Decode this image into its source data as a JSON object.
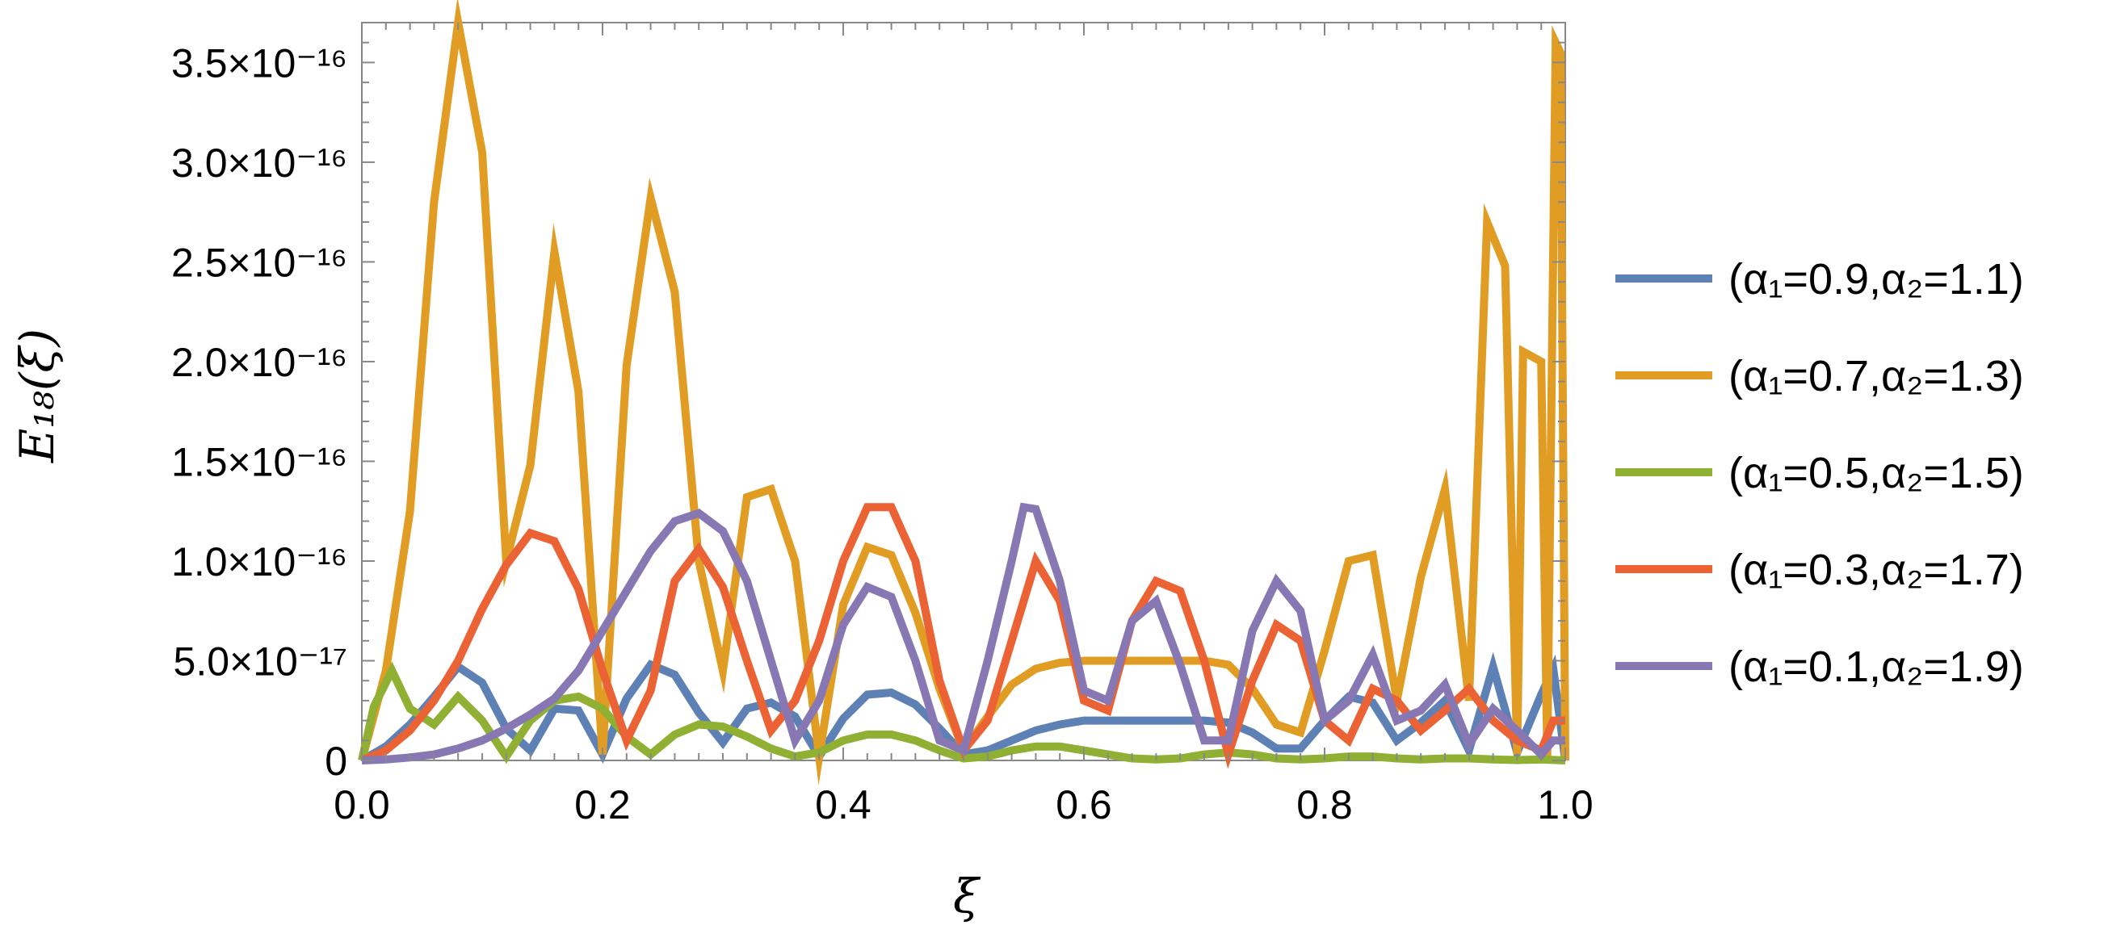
{
  "chart_data": {
    "type": "line",
    "xlabel": "ξ",
    "ylabel": "E₁₈(ξ)",
    "xlim": [
      0,
      1
    ],
    "ylim": [
      0,
      3.7e-16
    ],
    "x_ticks": [
      0,
      0.2,
      0.4,
      0.6,
      0.8,
      1.0
    ],
    "x_tick_labels": [
      "0.0",
      "0.2",
      "0.4",
      "0.6",
      "0.8",
      "1.0"
    ],
    "y_ticks": [
      0,
      5e-17,
      1e-16,
      1.5e-16,
      2e-16,
      2.5e-16,
      3e-16,
      3.5e-16
    ],
    "y_tick_labels": [
      "0",
      "5.0×10⁻¹⁷",
      "1.0×10⁻¹⁶",
      "1.5×10⁻¹⁶",
      "2.0×10⁻¹⁶",
      "2.5×10⁻¹⁶",
      "3.0×10⁻¹⁶",
      "3.5×10⁻¹⁶"
    ],
    "grid": false,
    "legend_position": "right",
    "series": [
      {
        "name": "(α₁=0.9,α₂=1.1)",
        "color": "#5E81B5",
        "points": [
          [
            0,
            0
          ],
          [
            0.02,
            7e-18
          ],
          [
            0.04,
            1.8e-17
          ],
          [
            0.06,
            3.2e-17
          ],
          [
            0.08,
            4.7e-17
          ],
          [
            0.1,
            3.9e-17
          ],
          [
            0.12,
            1.6e-17
          ],
          [
            0.14,
            5e-18
          ],
          [
            0.16,
            2.6e-17
          ],
          [
            0.18,
            2.5e-17
          ],
          [
            0.2,
            3e-18
          ],
          [
            0.22,
            3.1e-17
          ],
          [
            0.24,
            4.8e-17
          ],
          [
            0.26,
            4.3e-17
          ],
          [
            0.28,
            2.4e-17
          ],
          [
            0.3,
            9e-18
          ],
          [
            0.32,
            2.6e-17
          ],
          [
            0.34,
            2.9e-17
          ],
          [
            0.36,
            2.2e-17
          ],
          [
            0.38,
            2e-18
          ],
          [
            0.4,
            2.1e-17
          ],
          [
            0.42,
            3.3e-17
          ],
          [
            0.44,
            3.4e-17
          ],
          [
            0.46,
            2.8e-17
          ],
          [
            0.48,
            1.6e-17
          ],
          [
            0.5,
            3e-18
          ],
          [
            0.52,
            5e-18
          ],
          [
            0.54,
            1e-17
          ],
          [
            0.56,
            1.5e-17
          ],
          [
            0.58,
            1.8e-17
          ],
          [
            0.6,
            2e-17
          ],
          [
            0.62,
            2e-17
          ],
          [
            0.64,
            2e-17
          ],
          [
            0.66,
            2e-17
          ],
          [
            0.68,
            2e-17
          ],
          [
            0.7,
            2e-17
          ],
          [
            0.72,
            1.9e-17
          ],
          [
            0.74,
            1.4e-17
          ],
          [
            0.76,
            6e-18
          ],
          [
            0.78,
            6e-18
          ],
          [
            0.8,
            2e-17
          ],
          [
            0.82,
            3.2e-17
          ],
          [
            0.84,
            2.9e-17
          ],
          [
            0.86,
            1e-17
          ],
          [
            0.88,
            1.9e-17
          ],
          [
            0.9,
            3e-17
          ],
          [
            0.92,
            5e-18
          ],
          [
            0.94,
            4.7e-17
          ],
          [
            0.96,
            4e-18
          ],
          [
            0.98,
            3.3e-17
          ],
          [
            0.99,
            4.6e-17
          ],
          [
            1.0,
            0
          ]
        ]
      },
      {
        "name": "(α₁=0.7,α₂=1.3)",
        "color": "#E19C24",
        "points": [
          [
            0,
            0
          ],
          [
            0.02,
            4.5e-17
          ],
          [
            0.04,
            1.25e-16
          ],
          [
            0.06,
            2.8e-16
          ],
          [
            0.08,
            3.7e-16
          ],
          [
            0.1,
            3.05e-16
          ],
          [
            0.12,
            1e-16
          ],
          [
            0.14,
            1.48e-16
          ],
          [
            0.16,
            2.55e-16
          ],
          [
            0.18,
            1.85e-16
          ],
          [
            0.2,
            3e-18
          ],
          [
            0.22,
            1.98e-16
          ],
          [
            0.24,
            2.82e-16
          ],
          [
            0.26,
            2.35e-16
          ],
          [
            0.28,
            1e-16
          ],
          [
            0.3,
            4.5e-17
          ],
          [
            0.32,
            1.32e-16
          ],
          [
            0.34,
            1.36e-16
          ],
          [
            0.36,
            1e-16
          ],
          [
            0.38,
            2e-18
          ],
          [
            0.4,
            7.8e-17
          ],
          [
            0.42,
            1.07e-16
          ],
          [
            0.44,
            1.03e-16
          ],
          [
            0.46,
            7.4e-17
          ],
          [
            0.48,
            3.6e-17
          ],
          [
            0.5,
            5e-18
          ],
          [
            0.52,
            2.2e-17
          ],
          [
            0.54,
            3.8e-17
          ],
          [
            0.56,
            4.6e-17
          ],
          [
            0.58,
            4.9e-17
          ],
          [
            0.6,
            5e-17
          ],
          [
            0.62,
            5e-17
          ],
          [
            0.64,
            5e-17
          ],
          [
            0.66,
            5e-17
          ],
          [
            0.68,
            5e-17
          ],
          [
            0.7,
            5e-17
          ],
          [
            0.72,
            4.8e-17
          ],
          [
            0.74,
            3.6e-17
          ],
          [
            0.76,
            1.8e-17
          ],
          [
            0.78,
            1.4e-17
          ],
          [
            0.8,
            5.5e-17
          ],
          [
            0.82,
            1e-16
          ],
          [
            0.84,
            1.03e-16
          ],
          [
            0.86,
            3e-17
          ],
          [
            0.88,
            9.2e-17
          ],
          [
            0.9,
            1.36e-16
          ],
          [
            0.92,
            3e-17
          ],
          [
            0.935,
            2.7e-16
          ],
          [
            0.95,
            2.48e-16
          ],
          [
            0.96,
            3e-18
          ],
          [
            0.965,
            2.05e-16
          ],
          [
            0.98,
            2e-16
          ],
          [
            0.985,
            2e-18
          ],
          [
            0.992,
            3.6e-16
          ],
          [
            0.996,
            3.55e-16
          ],
          [
            1.0,
            0
          ]
        ]
      },
      {
        "name": "(α₁=0.5,α₂=1.5)",
        "color": "#8FB032",
        "points": [
          [
            0,
            0
          ],
          [
            0.01,
            2.7e-17
          ],
          [
            0.025,
            4.5e-17
          ],
          [
            0.04,
            2.6e-17
          ],
          [
            0.06,
            1.8e-17
          ],
          [
            0.08,
            3.2e-17
          ],
          [
            0.1,
            2e-17
          ],
          [
            0.12,
            2e-18
          ],
          [
            0.14,
            2e-17
          ],
          [
            0.16,
            3e-17
          ],
          [
            0.18,
            3.2e-17
          ],
          [
            0.2,
            2.6e-17
          ],
          [
            0.22,
            1.2e-17
          ],
          [
            0.24,
            3e-18
          ],
          [
            0.26,
            1.3e-17
          ],
          [
            0.28,
            1.8e-17
          ],
          [
            0.3,
            1.7e-17
          ],
          [
            0.32,
            1.2e-17
          ],
          [
            0.34,
            6e-18
          ],
          [
            0.36,
            2e-18
          ],
          [
            0.38,
            4e-18
          ],
          [
            0.4,
            1e-17
          ],
          [
            0.42,
            1.3e-17
          ],
          [
            0.44,
            1.3e-17
          ],
          [
            0.46,
            1e-17
          ],
          [
            0.48,
            5e-18
          ],
          [
            0.5,
            1e-18
          ],
          [
            0.52,
            2e-18
          ],
          [
            0.54,
            5e-18
          ],
          [
            0.56,
            7e-18
          ],
          [
            0.58,
            7e-18
          ],
          [
            0.6,
            5e-18
          ],
          [
            0.62,
            3e-18
          ],
          [
            0.64,
            1e-18
          ],
          [
            0.66,
            5e-19
          ],
          [
            0.68,
            1e-18
          ],
          [
            0.7,
            3e-18
          ],
          [
            0.72,
            4e-18
          ],
          [
            0.74,
            3e-18
          ],
          [
            0.76,
            1e-18
          ],
          [
            0.78,
            5e-19
          ],
          [
            0.8,
            1e-18
          ],
          [
            0.82,
            2e-18
          ],
          [
            0.84,
            2e-18
          ],
          [
            0.86,
            1e-18
          ],
          [
            0.88,
            5e-19
          ],
          [
            0.9,
            1e-18
          ],
          [
            0.92,
            1e-18
          ],
          [
            0.94,
            5e-19
          ],
          [
            0.96,
            2e-19
          ],
          [
            0.98,
            5e-19
          ],
          [
            1.0,
            0
          ]
        ]
      },
      {
        "name": "(α₁=0.3,α₂=1.7)",
        "color": "#EB6235",
        "points": [
          [
            0,
            0
          ],
          [
            0.02,
            5e-18
          ],
          [
            0.04,
            1.5e-17
          ],
          [
            0.06,
            3e-17
          ],
          [
            0.08,
            5e-17
          ],
          [
            0.1,
            7.6e-17
          ],
          [
            0.12,
            9.8e-17
          ],
          [
            0.14,
            1.14e-16
          ],
          [
            0.16,
            1.1e-16
          ],
          [
            0.18,
            8.6e-17
          ],
          [
            0.2,
            4.5e-17
          ],
          [
            0.22,
            1e-17
          ],
          [
            0.24,
            3.5e-17
          ],
          [
            0.26,
            9e-17
          ],
          [
            0.28,
            1.06e-16
          ],
          [
            0.3,
            8.7e-17
          ],
          [
            0.32,
            5e-17
          ],
          [
            0.34,
            1.5e-17
          ],
          [
            0.36,
            3e-17
          ],
          [
            0.38,
            6e-17
          ],
          [
            0.4,
            1e-16
          ],
          [
            0.42,
            1.27e-16
          ],
          [
            0.44,
            1.27e-16
          ],
          [
            0.46,
            1e-16
          ],
          [
            0.48,
            4e-17
          ],
          [
            0.5,
            5e-18
          ],
          [
            0.52,
            2e-17
          ],
          [
            0.54,
            6e-17
          ],
          [
            0.56,
            1e-16
          ],
          [
            0.58,
            8e-17
          ],
          [
            0.6,
            3e-17
          ],
          [
            0.62,
            2.5e-17
          ],
          [
            0.64,
            7e-17
          ],
          [
            0.66,
            9e-17
          ],
          [
            0.68,
            8.5e-17
          ],
          [
            0.7,
            5e-17
          ],
          [
            0.72,
            3e-18
          ],
          [
            0.74,
            4e-17
          ],
          [
            0.76,
            6.8e-17
          ],
          [
            0.78,
            6e-17
          ],
          [
            0.8,
            2e-17
          ],
          [
            0.82,
            1e-17
          ],
          [
            0.84,
            3.6e-17
          ],
          [
            0.86,
            3e-17
          ],
          [
            0.88,
            1.5e-17
          ],
          [
            0.9,
            2.5e-17
          ],
          [
            0.92,
            3.6e-17
          ],
          [
            0.94,
            2e-17
          ],
          [
            0.96,
            1e-17
          ],
          [
            0.98,
            5e-18
          ],
          [
            0.99,
            2e-17
          ],
          [
            1.0,
            2e-17
          ]
        ]
      },
      {
        "name": "(α₁=0.1,α₂=1.9)",
        "color": "#8778B3",
        "points": [
          [
            0,
            0
          ],
          [
            0.02,
            5e-19
          ],
          [
            0.04,
            1.5e-18
          ],
          [
            0.06,
            3e-18
          ],
          [
            0.08,
            6e-18
          ],
          [
            0.1,
            1e-17
          ],
          [
            0.12,
            1.6e-17
          ],
          [
            0.14,
            2.3e-17
          ],
          [
            0.16,
            3.1e-17
          ],
          [
            0.18,
            4.5e-17
          ],
          [
            0.2,
            6.5e-17
          ],
          [
            0.22,
            8.5e-17
          ],
          [
            0.24,
            1.05e-16
          ],
          [
            0.26,
            1.2e-16
          ],
          [
            0.28,
            1.24e-16
          ],
          [
            0.3,
            1.15e-16
          ],
          [
            0.32,
            9e-17
          ],
          [
            0.34,
            5e-17
          ],
          [
            0.36,
            1e-17
          ],
          [
            0.38,
            3e-17
          ],
          [
            0.4,
            6.8e-17
          ],
          [
            0.42,
            8.7e-17
          ],
          [
            0.44,
            8.2e-17
          ],
          [
            0.46,
            5e-17
          ],
          [
            0.48,
            1e-17
          ],
          [
            0.5,
            5e-18
          ],
          [
            0.52,
            5e-17
          ],
          [
            0.54,
            1e-16
          ],
          [
            0.55,
            1.27e-16
          ],
          [
            0.56,
            1.26e-16
          ],
          [
            0.58,
            9e-17
          ],
          [
            0.6,
            3.5e-17
          ],
          [
            0.62,
            3e-17
          ],
          [
            0.64,
            7e-17
          ],
          [
            0.66,
            8e-17
          ],
          [
            0.68,
            4.8e-17
          ],
          [
            0.7,
            1e-17
          ],
          [
            0.72,
            1e-17
          ],
          [
            0.74,
            6.5e-17
          ],
          [
            0.76,
            9e-17
          ],
          [
            0.78,
            7.5e-17
          ],
          [
            0.8,
            2e-17
          ],
          [
            0.82,
            3e-17
          ],
          [
            0.84,
            5.3e-17
          ],
          [
            0.86,
            2e-17
          ],
          [
            0.88,
            2.5e-17
          ],
          [
            0.9,
            3.8e-17
          ],
          [
            0.92,
            8e-18
          ],
          [
            0.94,
            2.6e-17
          ],
          [
            0.96,
            1.5e-17
          ],
          [
            0.98,
            3e-18
          ],
          [
            0.99,
            1e-17
          ],
          [
            1.0,
            1e-17
          ]
        ]
      }
    ]
  }
}
